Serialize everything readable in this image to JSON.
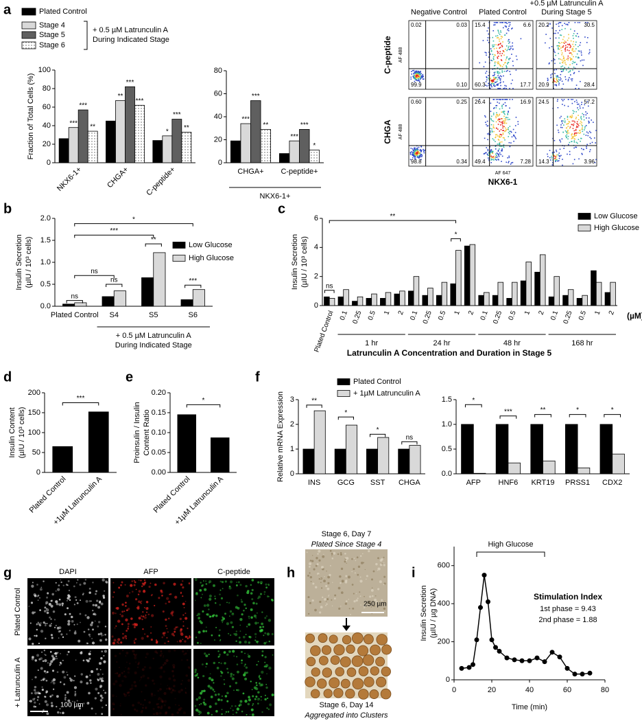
{
  "panels": [
    "a",
    "b",
    "c",
    "d",
    "e",
    "f",
    "g",
    "h",
    "i"
  ],
  "chart_data": [
    {
      "type": "bar",
      "categories": [
        "NKX6-1+",
        "CHGA+",
        "C-peptide+"
      ],
      "ylabel": [
        "Fraction of Total  Cells (%)"
      ],
      "ylim": [
        0,
        100
      ],
      "yticks": [
        0,
        20,
        40,
        60,
        80,
        100
      ],
      "series": [
        {
          "name": "Plated Control",
          "color": "#000000",
          "values": [
            26,
            45,
            24
          ]
        },
        {
          "name": "Stage 4",
          "color": "#d9d9d9",
          "values": [
            38,
            67,
            29
          ],
          "significance": [
            "***",
            "**",
            "*"
          ]
        },
        {
          "name": "Stage 5",
          "color": "#5f5f5f",
          "values": [
            57,
            82,
            47
          ],
          "significance": [
            "***",
            "***",
            "***"
          ]
        },
        {
          "name": "Stage 6",
          "color": "#ffffff",
          "pattern": "dots",
          "values": [
            34,
            62,
            33
          ],
          "significance": [
            "**",
            "***",
            "**"
          ]
        }
      ],
      "legend_note": [
        "+ 0.5 µM Latrunculin A",
        "During Indicated Stage"
      ]
    },
    {
      "type": "bar",
      "categories": [
        "CHGA+",
        "C-peptide+"
      ],
      "group_label": [
        "NKX6-1+"
      ],
      "ylim": [
        0,
        80
      ],
      "yticks": [
        0,
        20,
        40,
        60,
        80
      ],
      "series": [
        {
          "color": "#000000",
          "values": [
            19,
            8
          ]
        },
        {
          "color": "#d9d9d9",
          "values": [
            34,
            19
          ],
          "significance": [
            "***",
            "***"
          ]
        },
        {
          "color": "#5f5f5f",
          "values": [
            54,
            29
          ],
          "significance": [
            "***",
            "***"
          ]
        },
        {
          "color": "#ffffff",
          "pattern": "dots",
          "values": [
            29,
            11
          ],
          "significance": [
            "**",
            "*"
          ]
        }
      ]
    },
    {
      "type": "bar",
      "categories": [
        "Plated Control",
        "S4",
        "S5",
        "S6"
      ],
      "group_label": [
        "+ 0.5 µM Latrunculin A",
        "During Indicated Stage"
      ],
      "ylabel": [
        "Insulin Secretion",
        "(µIU / 10³ cells)"
      ],
      "ylim": [
        0,
        2
      ],
      "yticks": [
        {
          "value": 0,
          "label": "0.0"
        },
        0.5,
        {
          "value": 1,
          "label": "1.0"
        },
        1.5,
        {
          "value": 2,
          "label": "2.0"
        }
      ],
      "series": [
        {
          "name": "Low Glucose",
          "color": "#000000",
          "values": [
            0.05,
            0.22,
            0.65,
            0.15
          ]
        },
        {
          "name": "High Glucose",
          "color": "#d9d9d9",
          "values": [
            0.08,
            0.35,
            1.22,
            0.38
          ]
        }
      ],
      "annotations": [
        "ns",
        "ns",
        "ns",
        "**",
        "***",
        "***",
        "*"
      ]
    },
    {
      "type": "bar",
      "categories": [
        "Plated Control",
        "0.1",
        "0.25",
        "0.5",
        "1",
        "2",
        "0.1",
        "0.25",
        "0.5",
        "1",
        "2",
        "0.1",
        "0.25",
        "0.5",
        "1",
        "2",
        "0.1",
        "0.25",
        "0.5",
        "1",
        "2"
      ],
      "groups": [
        "1 hr",
        "24 hr",
        "48 hr",
        "168 hr"
      ],
      "unit": "(µM)",
      "xlabel": "Latrunculin A Concentration and Duration in Stage 5",
      "ylabel": [
        "Insulin Secretion",
        "(µIU / 10³ cells)"
      ],
      "ylim": [
        0,
        6
      ],
      "yticks": [
        0,
        2,
        4,
        6
      ],
      "series": [
        {
          "name": "Low Glucose",
          "color": "#000000",
          "values": [
            0.6,
            0.6,
            0.3,
            0.5,
            0.5,
            0.8,
            1.0,
            0.7,
            0.7,
            1.5,
            4.1,
            0.7,
            0.7,
            0.5,
            1.7,
            2.3,
            0.6,
            0.7,
            0.5,
            2.4,
            0.9
          ]
        },
        {
          "name": "High Glucose",
          "color": "#d9d9d9",
          "values": [
            0.5,
            1.1,
            0.6,
            0.8,
            0.9,
            1.0,
            2.0,
            1.2,
            1.6,
            3.8,
            4.2,
            0.9,
            1.6,
            1.6,
            3.0,
            3.5,
            2.0,
            1.1,
            0.7,
            1.6,
            1.6
          ]
        }
      ],
      "annotations": [
        "ns",
        "*",
        "**"
      ]
    },
    {
      "type": "bar",
      "categories": [
        "Plated Control",
        "+1µM Latrunculin A"
      ],
      "values": [
        65,
        152
      ],
      "color": "#000000",
      "ylabel": [
        "Insulin Content",
        "(µIU / 10³ cells)"
      ],
      "ylim": [
        0,
        200
      ],
      "yticks": [
        0,
        50,
        100,
        150,
        200
      ],
      "annotations": [
        "***"
      ]
    },
    {
      "type": "bar",
      "categories": [
        "Plated Control",
        "+1µM Latrunculin A"
      ],
      "values": [
        0.145,
        0.087
      ],
      "color": "#000000",
      "ylabel": [
        "Proinsulin / Insulin",
        "Content Ratio"
      ],
      "ylim": [
        0,
        0.2
      ],
      "yticks": [
        {
          "value": 0,
          "label": "0.00"
        },
        0.05,
        {
          "value": 0.1,
          "label": "0.10"
        },
        0.15,
        {
          "value": 0.2,
          "label": "0.20"
        }
      ],
      "annotations": [
        "*"
      ]
    },
    {
      "type": "bar",
      "categories": [
        "INS",
        "GCG",
        "SST",
        "CHGA"
      ],
      "ylabel": [
        "Relative mRNA Expression"
      ],
      "ylim": [
        0,
        3
      ],
      "yticks": [
        0,
        1,
        2,
        3
      ],
      "series": [
        {
          "name": "Plated Control",
          "color": "#000000",
          "values": [
            1,
            1,
            1,
            1
          ]
        },
        {
          "name": "+ 1µM Latrunculin A",
          "color": "#d9d9d9",
          "values": [
            2.55,
            1.97,
            1.47,
            1.15
          ]
        }
      ],
      "annotations": [
        "**",
        "*",
        "*",
        "ns"
      ]
    },
    {
      "type": "bar",
      "categories": [
        "AFP",
        "HNF6",
        "KRT19",
        "PRSS1",
        "CDX2"
      ],
      "ylim": [
        0,
        1.5
      ],
      "yticks": [
        {
          "value": 0,
          "label": "0.0"
        },
        0.5,
        {
          "value": 1,
          "label": "1.0"
        },
        1.5
      ],
      "series": [
        {
          "color": "#000000",
          "values": [
            1,
            1,
            1,
            1,
            1
          ]
        },
        {
          "color": "#d9d9d9",
          "values": [
            0.01,
            0.22,
            0.26,
            0.12,
            0.4
          ]
        }
      ],
      "annotations": [
        "*",
        "***",
        "**",
        "*",
        "*"
      ]
    },
    {
      "type": "line",
      "x": [
        4,
        8,
        10,
        12,
        14,
        16,
        18,
        20,
        22,
        24,
        28,
        32,
        36,
        40,
        44,
        48,
        52,
        56,
        60,
        64,
        68,
        72
      ],
      "values": [
        60,
        65,
        80,
        210,
        380,
        550,
        410,
        210,
        170,
        150,
        115,
        105,
        100,
        100,
        115,
        95,
        145,
        120,
        60,
        30,
        30,
        35
      ],
      "color": "#000000",
      "xlim": [
        0,
        80
      ],
      "xticks": [
        0,
        20,
        40,
        60,
        80
      ],
      "ylim": [
        0,
        700
      ],
      "yticks": [
        0,
        200,
        400,
        600
      ],
      "xlabel": "Time (min)",
      "ylabel": [
        "Insulin Secretion",
        "(µIU / µg DNA)"
      ],
      "highlight": {
        "label": "High Glucose",
        "x": [
          12,
          48
        ]
      },
      "stimulation_index": {
        "title": "Stimulation Index",
        "lines": [
          "1st phase = 9.43",
          "2nd phase = 1.88"
        ]
      }
    }
  ],
  "flow": {
    "column_titles": [
      [
        "Negative Control"
      ],
      [
        "Plated Control"
      ],
      [
        "+0.5 µM Latrunculin A",
        "During Stage 5"
      ]
    ],
    "rows": [
      {
        "label": "C-peptide",
        "quadrants": [
          [
            "0.02",
            "0.03",
            "99.9",
            "0.10"
          ],
          [
            "15.4",
            "6.6",
            "60.3",
            "17.7"
          ],
          [
            "20.2",
            "30.5",
            "20.9",
            "28.4"
          ]
        ]
      },
      {
        "label": "CHGA",
        "quadrants": [
          [
            "0.60",
            "0.25",
            "98.8",
            "0.34"
          ],
          [
            "26.4",
            "16.9",
            "49.4",
            "7.28"
          ],
          [
            "24.5",
            "57.2",
            "14.3",
            "3.96"
          ]
        ]
      }
    ],
    "y_channel": "AF 488",
    "x_channel": "AF 647",
    "x_label": "NKX6-1"
  },
  "microscopy": {
    "columns": [
      "DAPI",
      "AFP",
      "C-peptide"
    ],
    "rows": [
      "Plated Control",
      "+ Latrunculin A"
    ],
    "scale_bar": "100 µm"
  },
  "brightfield": {
    "top": [
      "Stage 6, Day 7",
      "Plated Since Stage 4"
    ],
    "scale_bar": "250 µm",
    "bottom": [
      "Stage 6, Day 14",
      "Aggregated into Clusters"
    ]
  }
}
